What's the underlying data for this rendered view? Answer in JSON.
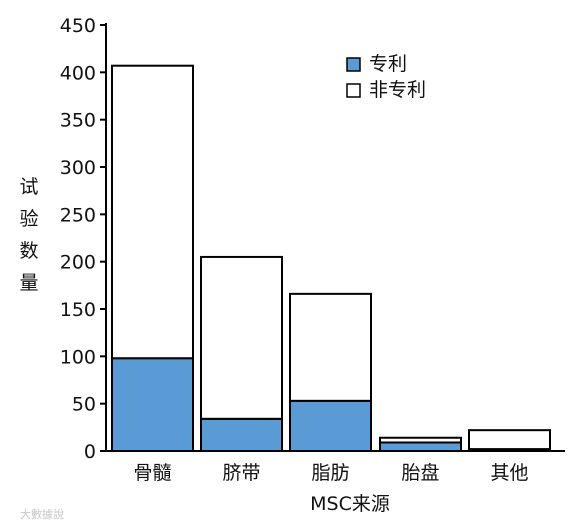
{
  "chart_data": {
    "type": "bar",
    "stacked": true,
    "categories": [
      "骨髓",
      "脐带",
      "脂肪",
      "胎盘",
      "其他"
    ],
    "series": [
      {
        "name": "专利",
        "values": [
          98,
          34,
          53,
          9,
          2
        ],
        "color": "#5b9bd5"
      },
      {
        "name": "非专利",
        "values": [
          309,
          171,
          113,
          5,
          20
        ],
        "color": "#ffffff"
      }
    ],
    "xlabel": "MSC来源",
    "ylabel": "试验数量",
    "ylim": [
      0,
      450
    ],
    "yticks": [
      0,
      50,
      100,
      150,
      200,
      250,
      300,
      350,
      400,
      450
    ],
    "grid": false,
    "legend_position": "top-right"
  },
  "watermark": {
    "text": "大數據說"
  }
}
